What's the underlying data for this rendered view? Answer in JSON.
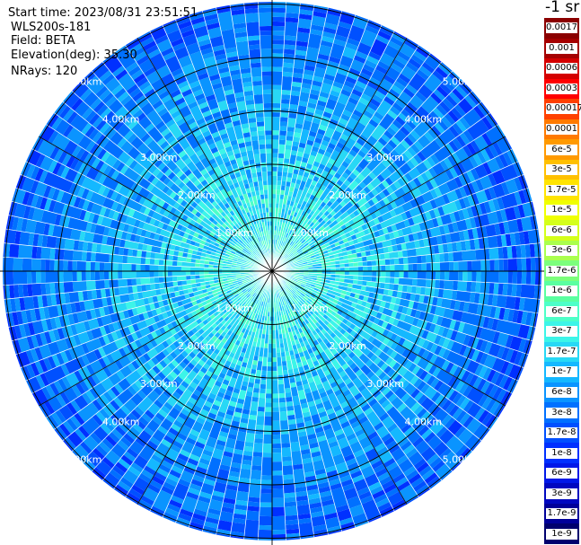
{
  "header": {
    "start_time": "Start time: 2023/08/31 23:51:51",
    "instrument": "WLS200s-181",
    "field": "Field: BETA",
    "elevation": "Elevation(deg): 35.30",
    "nrays": "NRays: 120"
  },
  "chart_data": {
    "type": "heatmap",
    "projection": "polar (PPI scan)",
    "field": "BETA",
    "unit": "-1 sr",
    "nrays": 120,
    "elevation_deg": 35.3,
    "range_rings_km": [
      1,
      2,
      3,
      4,
      5
    ],
    "range_ring_labels": [
      "1.00km",
      "2.00km",
      "3.00km",
      "4.00km",
      "5.00km"
    ],
    "colorbar_labels": [
      "0.0017",
      "0.001",
      "0.0006",
      "0.0003",
      "0.00017",
      "0.0001",
      "6e-5",
      "3e-5",
      "1.7e-5",
      "1e-5",
      "6e-6",
      "3e-6",
      "1.7e-6",
      "1e-6",
      "6e-7",
      "3e-7",
      "1.7e-7",
      "1e-7",
      "6e-8",
      "3e-8",
      "1.7e-8",
      "1e-8",
      "6e-9",
      "3e-9",
      "1.7e-9",
      "1e-9"
    ],
    "colorbar_colors": [
      "#8b0000",
      "#a50000",
      "#d40000",
      "#ff0000",
      "#ff4000",
      "#ff7a00",
      "#ff9a00",
      "#ffc000",
      "#ffe400",
      "#f0ff00",
      "#d4ff1a",
      "#aaff4d",
      "#7cff7c",
      "#5affa0",
      "#4dffc8",
      "#3cf5e8",
      "#28d8f5",
      "#14b8ff",
      "#0a94ff",
      "#0070ff",
      "#0050ff",
      "#0030ff",
      "#0018e8",
      "#0008c0",
      "#00009a",
      "#00006e"
    ],
    "approx_values_by_range_km": [
      {
        "range_km": 0.5,
        "value": "3e-7"
      },
      {
        "range_km": 1.5,
        "value": "2e-7"
      },
      {
        "range_km": 2.5,
        "value": "1e-7"
      },
      {
        "range_km": 3.5,
        "value": "6e-8"
      },
      {
        "range_km": 4.5,
        "value": "3e-8"
      },
      {
        "range_km": 5.2,
        "value": "2e-8"
      }
    ]
  }
}
